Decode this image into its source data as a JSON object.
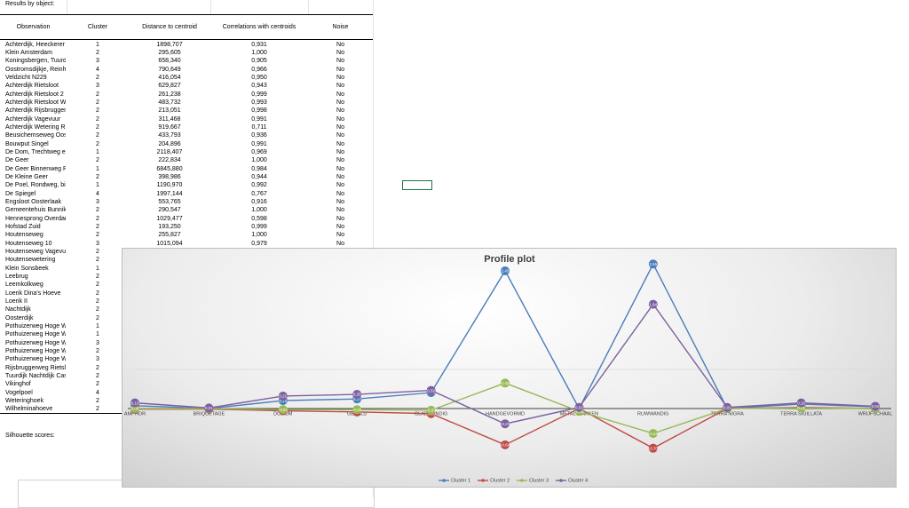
{
  "heading": "Results by object:",
  "table": {
    "columns": [
      "Observation",
      "Cluster",
      "Distance to centroid",
      "Correlations with centroids",
      "Noise"
    ],
    "rows": [
      [
        "Achterdijk, Heeckerer",
        1,
        "1898,707",
        "0,931",
        "No"
      ],
      [
        "Klein Amsterdam",
        2,
        "295,605",
        "1,000",
        "No"
      ],
      [
        "Koningsbergen, Tuurd",
        3,
        "658,340",
        "0,905",
        "No"
      ],
      [
        "Oostromsdijkje, Reinh",
        4,
        "790,649",
        "0,966",
        "No"
      ],
      [
        "Veldzicht  N229",
        2,
        "416,054",
        "0,950",
        "No"
      ],
      [
        "Achterdijk Rietsloot",
        3,
        "629,827",
        "0,943",
        "No"
      ],
      [
        "Achterdijk Rietsloot 2",
        2,
        "261,238",
        "0,999",
        "No"
      ],
      [
        "Achterdijk Rietsloot W",
        2,
        "483,732",
        "0,993",
        "No"
      ],
      [
        "Achterdijk Rijsbruggen",
        2,
        "213,051",
        "0,998",
        "No"
      ],
      [
        "Achterdijk Vagevuur",
        2,
        "311,468",
        "0,991",
        "No"
      ],
      [
        "Achterdijk Wetering R",
        2,
        "919,667",
        "0,711",
        "No"
      ],
      [
        "Beusichemseweg Oos",
        2,
        "433,793",
        "0,936",
        "No"
      ],
      [
        "Bouwput Singel",
        2,
        "204,896",
        "0,991",
        "No"
      ],
      [
        "De Dom, Trechtweg er",
        1,
        "2118,407",
        "0,969",
        "No"
      ],
      [
        "De Geer",
        2,
        "222,834",
        "1,000",
        "No"
      ],
      [
        "De Geer Binnenweg R",
        1,
        "6845,880",
        "0,984",
        "No"
      ],
      [
        "De Kleine Geer",
        2,
        "398,986",
        "0,944",
        "No"
      ],
      [
        "De Poel, Rondweg, bir",
        1,
        "1190,970",
        "0,992",
        "No"
      ],
      [
        "De Spiegel",
        4,
        "1997,144",
        "0,767",
        "No"
      ],
      [
        "Engsloot Oosterlaak",
        3,
        "553,765",
        "0,916",
        "No"
      ],
      [
        "Gemeentehuis Bunnik",
        2,
        "290,547",
        "1,000",
        "No"
      ],
      [
        "Hennesprong Overdan",
        2,
        "1029,477",
        "0,598",
        "No"
      ],
      [
        "Hofstad Zuid",
        2,
        "193,250",
        "0,999",
        "No"
      ],
      [
        "Houtenseweg",
        2,
        "255,827",
        "1,000",
        "No"
      ],
      [
        "Houtenseweg 10",
        3,
        "1015,094",
        "0,979",
        "No"
      ],
      [
        "Houtenseweg Vagevu",
        2
      ],
      [
        "Houtensewetering",
        2
      ],
      [
        "Klein Sonsbeek",
        1
      ],
      [
        "Leebrug",
        2
      ],
      [
        "Leemkolkweg",
        2
      ],
      [
        "Loerik Dina's Hoeve",
        2
      ],
      [
        "Loerik II",
        2
      ],
      [
        "Nachtdijk",
        2
      ],
      [
        "Oosterdijk",
        2
      ],
      [
        "Pothuizerweg Hoge W",
        1
      ],
      [
        "Pothuizerweg Hoge W",
        1
      ],
      [
        "Pothuizerweg Hoge W",
        3
      ],
      [
        "Pothuizerweg Hoge W",
        2
      ],
      [
        "Pothuizerweg Hoge W",
        3
      ],
      [
        "Rijsbruggerweg Rietsl",
        2
      ],
      [
        "Tuurdijk Nachtdijk Cas",
        2
      ],
      [
        "Vikinghof",
        2
      ],
      [
        "Vogelpoel",
        4
      ],
      [
        "Weteringhoek",
        2
      ],
      [
        "Wilhelminahoeve",
        2
      ]
    ]
  },
  "silhouette_heading": "Silhouette scores:",
  "chart_data": {
    "type": "line",
    "title": "Profile plot",
    "categories": [
      "AMPHOR",
      "BRIQUETAGE",
      "DOLIUM",
      "GEVELD",
      "GLADWANDIG",
      "HANDGEVORMD",
      "METALSLAKKEN",
      "RUWWANDIG",
      "TERRA NIGRA",
      "TERRA SIGILLATA",
      "WRIJFSCHAAL"
    ],
    "ylim": [
      -1,
      3
    ],
    "series": [
      {
        "name": "Cluster 1",
        "color": "#4a7ebb",
        "values": [
          0.05,
          0.0,
          0.14,
          0.17,
          0.28,
          2.43,
          0.0,
          2.55,
          0.0,
          0.08,
          0.03
        ],
        "value_labels": [
          "0,05",
          "0,00",
          "0,14",
          "0,17",
          "0,28",
          "2,43",
          "0,00",
          "2,55",
          "0,00",
          "0,08",
          "0,03"
        ]
      },
      {
        "name": "Cluster 2",
        "color": "#be4b48",
        "values": [
          -0.01,
          -0.01,
          -0.04,
          -0.06,
          -0.09,
          -0.64,
          0.0,
          -0.7,
          0.0,
          0.02,
          0.0
        ],
        "value_labels": [
          "-0,01",
          "-0,01",
          "-0,04",
          "-0,06",
          "-0,09",
          "-0,64",
          "0,00",
          "-0,70",
          "0,00",
          "0,02",
          "0,00"
        ]
      },
      {
        "name": "Cluster 3",
        "color": "#98b954",
        "values": [
          0.0,
          0.0,
          -0.02,
          -0.02,
          -0.03,
          0.45,
          -0.05,
          -0.44,
          0.0,
          0.01,
          0.0
        ],
        "value_labels": [
          "0,00",
          "0,00",
          "-0,02",
          "-0,02",
          "-0,03",
          "0,45",
          "-0,05",
          "-0,44",
          "0,00",
          "0,01",
          "0,00"
        ]
      },
      {
        "name": "Cluster 4",
        "color": "#7d60a0",
        "values": [
          0.1,
          0.01,
          0.22,
          0.25,
          0.32,
          -0.27,
          0.02,
          1.84,
          0.02,
          0.1,
          0.04
        ],
        "value_labels": [
          "0,10",
          "0,01",
          "0,22",
          "0,25",
          "0,32",
          "-0,27",
          "0,02",
          "1,84",
          "0,02",
          "0,10",
          "0,04"
        ]
      }
    ],
    "legend": "bottom"
  }
}
